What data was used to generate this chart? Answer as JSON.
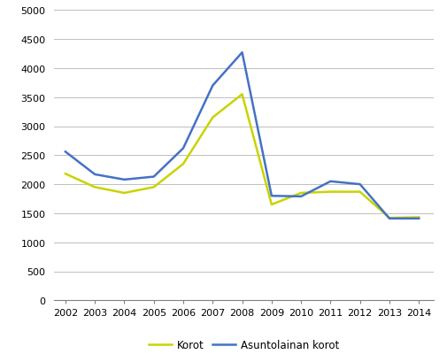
{
  "years": [
    2002,
    2003,
    2004,
    2005,
    2006,
    2007,
    2008,
    2009,
    2010,
    2011,
    2012,
    2013,
    2014
  ],
  "korot": [
    2180,
    1950,
    1850,
    1950,
    2350,
    3150,
    3550,
    1650,
    1850,
    1870,
    1870,
    1420,
    1430
  ],
  "asuntolainan_korot": [
    2560,
    2170,
    2080,
    2130,
    2620,
    3700,
    4270,
    1800,
    1790,
    2050,
    2000,
    1410,
    1410
  ],
  "korot_color": "#c8d400",
  "asuntolainan_color": "#4472c4",
  "legend_korot": "Korot",
  "legend_asuntolainan": "Asuntolainan korot",
  "ylim": [
    0,
    5000
  ],
  "yticks": [
    0,
    500,
    1000,
    1500,
    2000,
    2500,
    3000,
    3500,
    4000,
    4500,
    5000
  ],
  "background_color": "#ffffff",
  "grid_color": "#bfbfbf",
  "line_width": 1.8,
  "tick_fontsize": 8.0,
  "legend_fontsize": 8.5
}
